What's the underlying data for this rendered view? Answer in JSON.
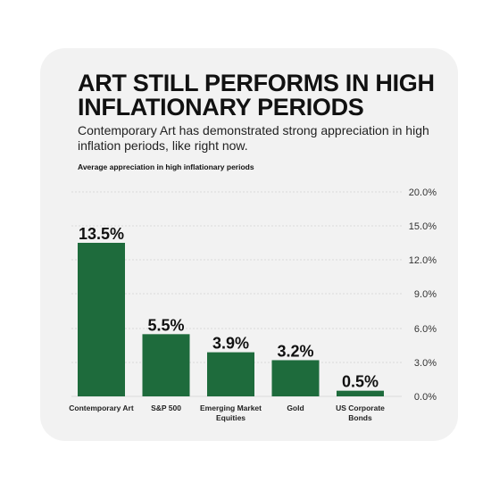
{
  "title": "ART STILL PERFORMS IN HIGH INFLATIONARY PERIODS",
  "subtitle": "Contemporary Art has demonstrated strong appreciation in high inflation periods, like right now.",
  "chart_data": {
    "type": "bar",
    "title": "",
    "ylabel": "Average appreciation in high inflationary periods",
    "xlabel": "",
    "categories": [
      "Contemporary Art",
      "S&P 500",
      "Emerging Market Equities",
      "Gold",
      "US Corporate Bonds"
    ],
    "values": [
      13.5,
      5.5,
      3.9,
      3.2,
      0.5
    ],
    "data_labels": [
      "13.5%",
      "5.5%",
      "3.9%",
      "3.2%",
      "0.5%"
    ],
    "ylim": [
      0,
      20
    ],
    "yticks": [
      0,
      3,
      6,
      9,
      12,
      15,
      20
    ],
    "ytick_labels": [
      "0.0%",
      "3.0%",
      "6.0%",
      "9.0%",
      "12.0%",
      "15.0%",
      "20.0%"
    ],
    "y_axis_side": "right",
    "grid": true,
    "legend": "none",
    "colors": {
      "bar": "#1e6b3c",
      "grid": "#d9d9d9",
      "card": "#f2f2f2"
    }
  }
}
